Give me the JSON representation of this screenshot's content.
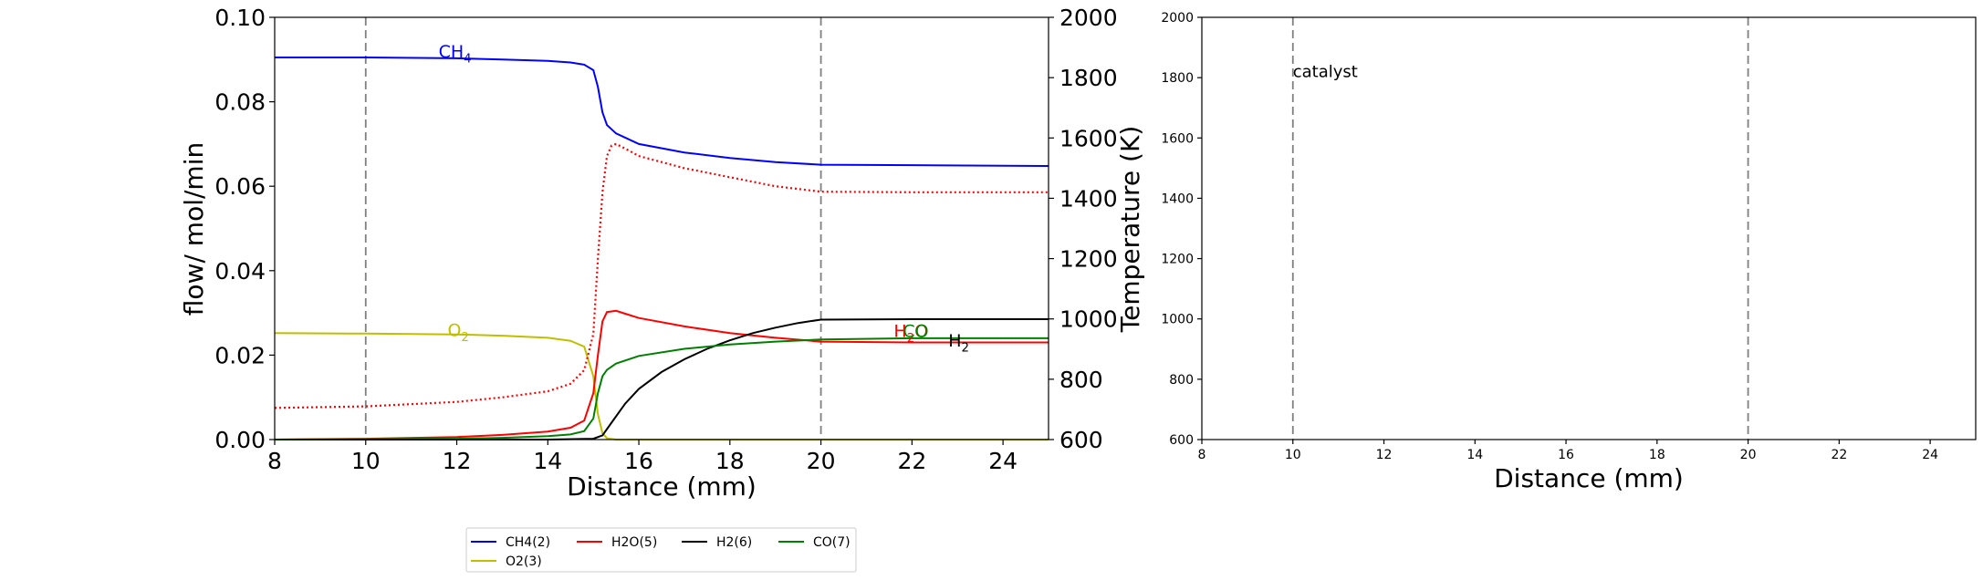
{
  "chart_data": [
    {
      "type": "line",
      "xlabel": "Distance (mm)",
      "ylabel": "flow/ mol/min",
      "y2label": "Temperature (K)",
      "xlim": [
        8,
        25
      ],
      "ylim": [
        0,
        0.1
      ],
      "y2lim": [
        600,
        2000
      ],
      "xticks": [
        "8",
        "10",
        "12",
        "14",
        "16",
        "18",
        "20",
        "22",
        "24"
      ],
      "yticks": [
        "0.00",
        "0.02",
        "0.04",
        "0.06",
        "0.08",
        "0.10"
      ],
      "y2ticks": [
        "600",
        "800",
        "1000",
        "1200",
        "1400",
        "1600",
        "1800",
        "2000"
      ],
      "vlines": [
        10,
        20
      ],
      "grid": false,
      "legend_position": "below",
      "series": [
        {
          "name": "CH4(2)",
          "label": "CH4",
          "color": "#0000ff",
          "style": "solid",
          "axis": "left",
          "x": [
            8,
            10,
            12,
            13,
            14,
            14.5,
            14.8,
            15.0,
            15.1,
            15.2,
            15.3,
            15.5,
            16,
            17,
            18,
            19,
            20,
            22,
            25
          ],
          "y": [
            0.0905,
            0.0905,
            0.0903,
            0.09,
            0.0897,
            0.0893,
            0.0888,
            0.0875,
            0.0835,
            0.0775,
            0.0745,
            0.0725,
            0.07,
            0.068,
            0.0667,
            0.0657,
            0.0651,
            0.065,
            0.0648
          ]
        },
        {
          "name": "O2(3)",
          "label": "O2",
          "color": "#bfbf00",
          "style": "solid",
          "axis": "left",
          "x": [
            8,
            10,
            12,
            13,
            14,
            14.5,
            14.8,
            15.0,
            15.1,
            15.2,
            15.3,
            15.5,
            16,
            25
          ],
          "y": [
            0.0252,
            0.0251,
            0.0249,
            0.0246,
            0.0241,
            0.0234,
            0.022,
            0.015,
            0.006,
            0.0015,
            0.0003,
            0.0,
            0.0,
            0.0
          ]
        },
        {
          "name": "H2O(5)",
          "label": "H2O",
          "color": "#ff0000",
          "style": "solid",
          "axis": "left",
          "x": [
            8,
            10,
            12,
            13,
            14,
            14.5,
            14.8,
            15.0,
            15.1,
            15.2,
            15.3,
            15.5,
            15.7,
            16,
            17,
            18,
            19,
            20,
            22,
            25
          ],
          "y": [
            0.0,
            0.0002,
            0.0006,
            0.0011,
            0.0019,
            0.0028,
            0.0045,
            0.011,
            0.02,
            0.028,
            0.0302,
            0.0305,
            0.0298,
            0.0288,
            0.0268,
            0.0252,
            0.0241,
            0.0232,
            0.023,
            0.023
          ]
        },
        {
          "name": "H2(6)",
          "label": "H2",
          "color": "#000000",
          "style": "solid",
          "axis": "left",
          "x": [
            8,
            10,
            12,
            14,
            15,
            15.2,
            15.4,
            15.7,
            16,
            16.5,
            17,
            17.5,
            18,
            18.5,
            19,
            19.5,
            20,
            22,
            25
          ],
          "y": [
            0.0,
            0.0,
            0.0,
            0.0,
            0.0002,
            0.001,
            0.004,
            0.0085,
            0.012,
            0.016,
            0.019,
            0.0215,
            0.0235,
            0.0252,
            0.0265,
            0.0276,
            0.0284,
            0.0285,
            0.0285
          ]
        },
        {
          "name": "CO(7)",
          "label": "CO",
          "color": "#008000",
          "style": "solid",
          "axis": "left",
          "x": [
            8,
            10,
            12,
            13,
            14,
            14.5,
            14.8,
            15.0,
            15.1,
            15.2,
            15.3,
            15.5,
            16,
            17,
            18,
            19,
            20,
            22,
            25
          ],
          "y": [
            0.0,
            0.0001,
            0.0002,
            0.0004,
            0.0008,
            0.0012,
            0.002,
            0.005,
            0.011,
            0.015,
            0.0165,
            0.018,
            0.0198,
            0.0215,
            0.0225,
            0.0232,
            0.0237,
            0.024,
            0.024
          ]
        },
        {
          "name": "Temperature",
          "color": "#ff0000",
          "style": "dotted",
          "axis": "right",
          "x": [
            8,
            10,
            12,
            13,
            14,
            14.5,
            14.8,
            15.0,
            15.1,
            15.2,
            15.3,
            15.4,
            15.5,
            15.7,
            16,
            17,
            18,
            19,
            20,
            22,
            25
          ],
          "y": [
            705,
            710,
            725,
            740,
            760,
            785,
            830,
            950,
            1200,
            1420,
            1540,
            1575,
            1580,
            1565,
            1540,
            1500,
            1470,
            1440,
            1422,
            1420,
            1420
          ]
        }
      ],
      "annotations": [
        {
          "text": "CH4",
          "x": 11.6,
          "y": 0.092,
          "color": "#0000ff"
        },
        {
          "text": "O2",
          "x": 11.8,
          "y": 0.026,
          "color": "#bfbf00"
        },
        {
          "text": "H2O",
          "x": 21.6,
          "y": 0.0258,
          "color": "#ff0000"
        },
        {
          "text": "CO",
          "x": 21.8,
          "y": 0.0258,
          "color": "#008000"
        },
        {
          "text": "H2",
          "x": 22.8,
          "y": 0.0235,
          "color": "#000000"
        }
      ]
    },
    {
      "type": "line",
      "xlabel": "Distance (mm)",
      "xlim": [
        8,
        25
      ],
      "ylim": [
        600,
        2000
      ],
      "xticks": [
        "8",
        "10",
        "12",
        "14",
        "16",
        "18",
        "20",
        "22",
        "24"
      ],
      "yticks": [
        "600",
        "800",
        "1000",
        "1200",
        "1400",
        "1600",
        "1800",
        "2000"
      ],
      "vlines": [
        10,
        20
      ],
      "grid": false,
      "series": [],
      "annotations": [
        {
          "text": "catalyst",
          "x": 10.0,
          "y": 1820,
          "color": "#000000"
        }
      ]
    }
  ],
  "legend": {
    "items": [
      {
        "label": "CH4(2)",
        "color": "#0000ff"
      },
      {
        "label": "H2O(5)",
        "color": "#ff0000"
      },
      {
        "label": "H2(6)",
        "color": "#000000"
      },
      {
        "label": "CO(7)",
        "color": "#008000"
      },
      {
        "label": "O2(3)",
        "color": "#bfbf00"
      }
    ]
  }
}
